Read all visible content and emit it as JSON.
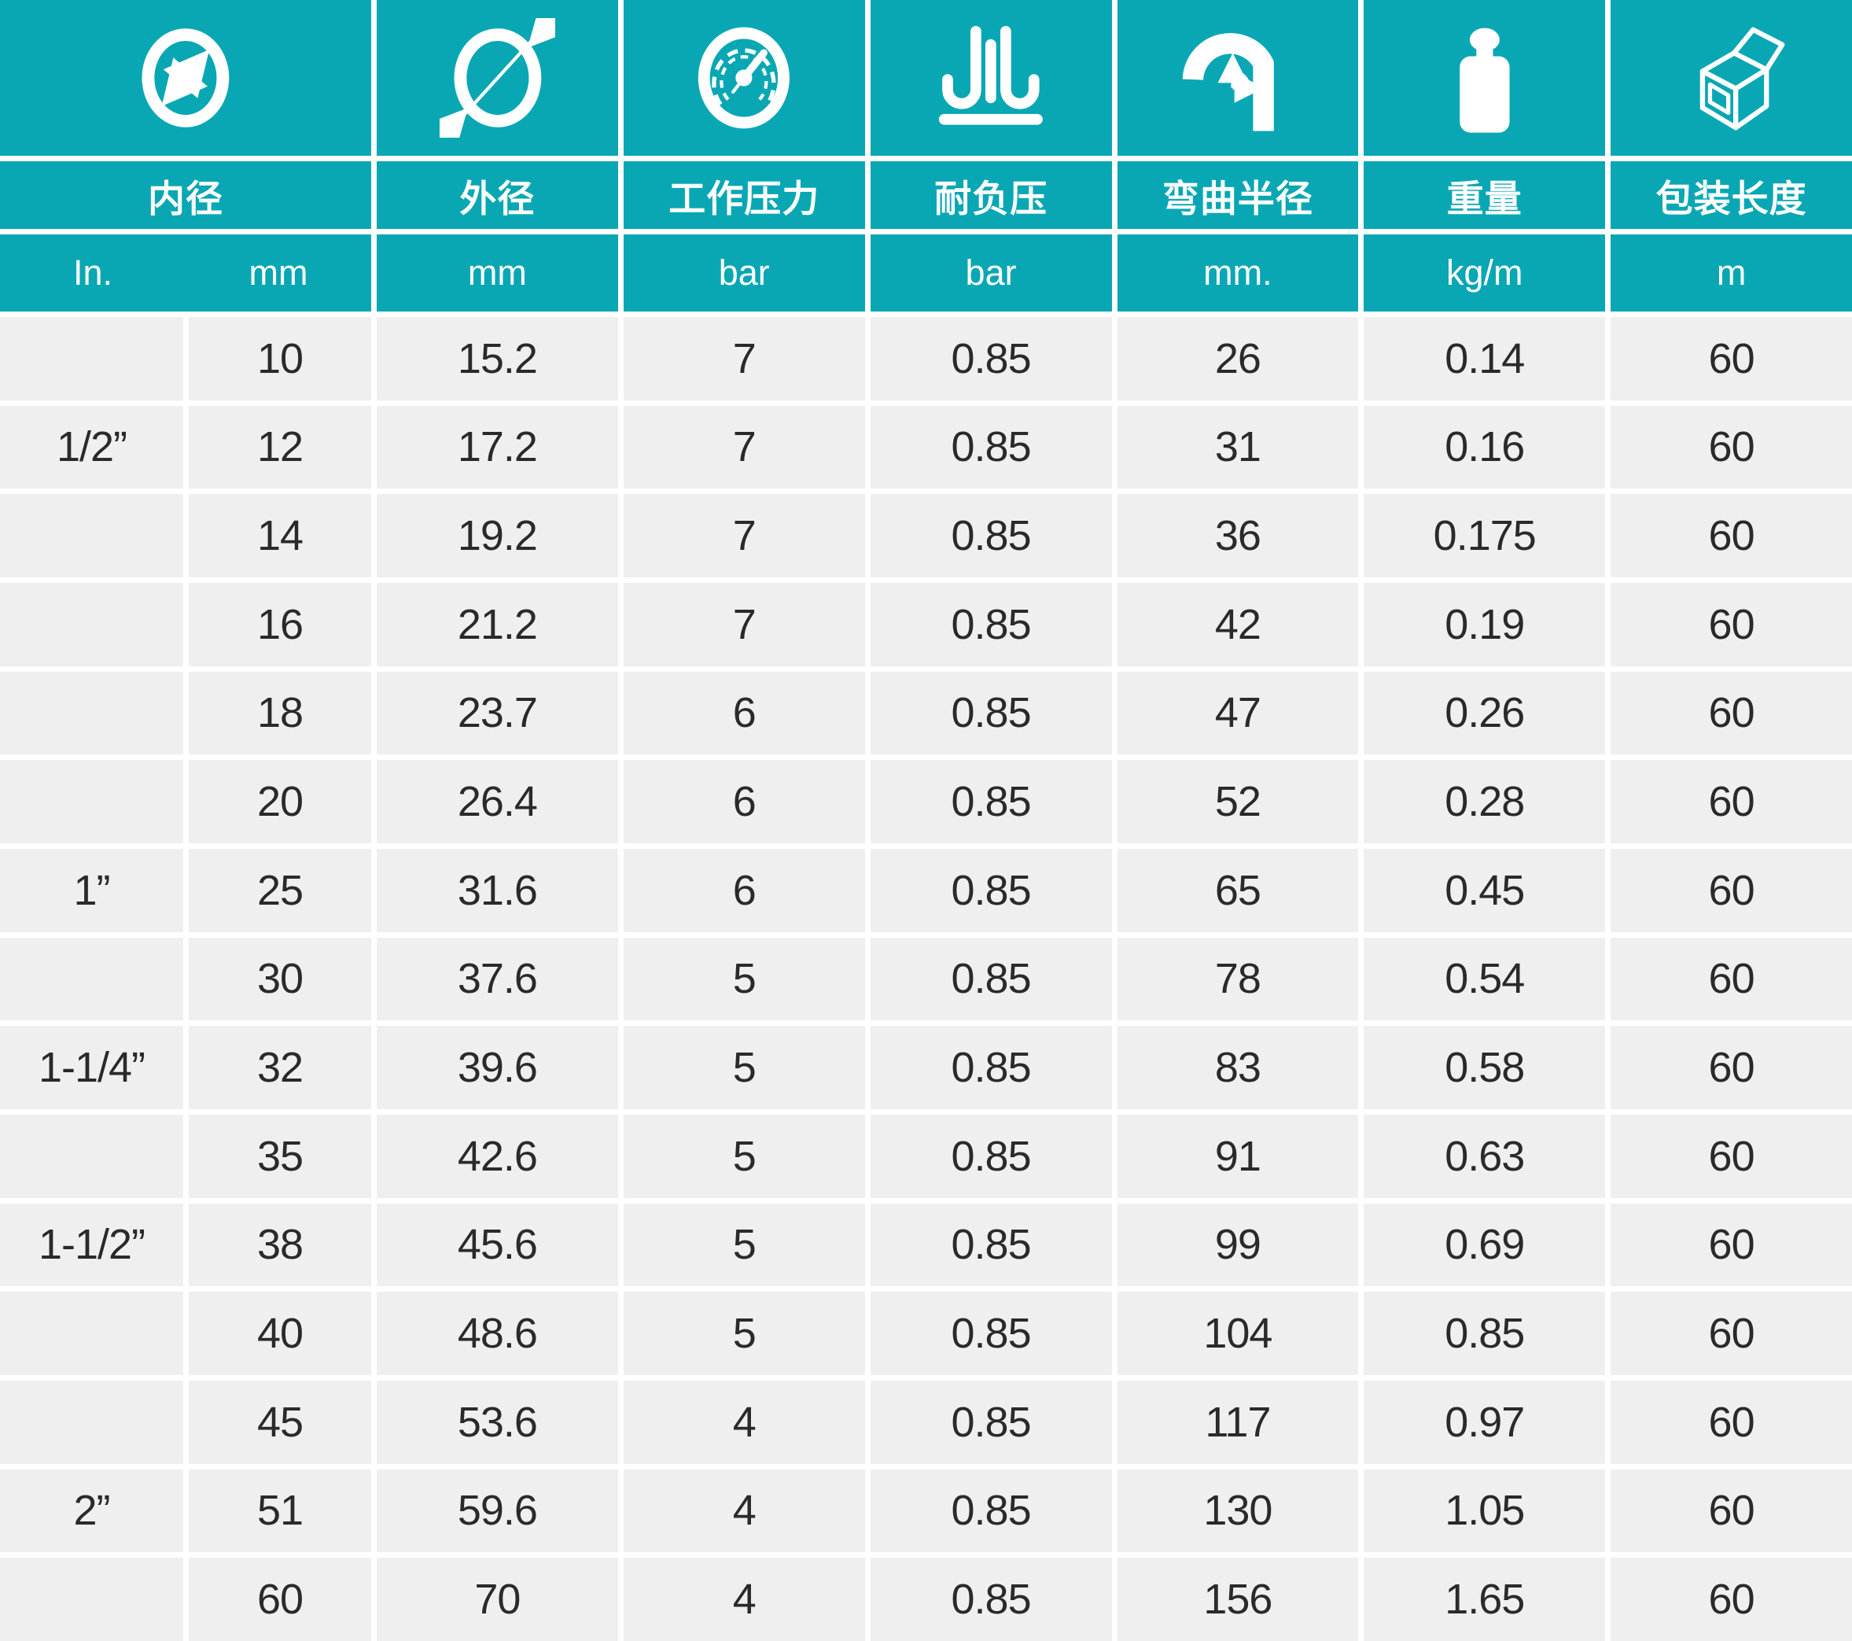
{
  "table": {
    "columns": [
      {
        "label": "内径",
        "icon": "inner-diameter-icon",
        "units": [
          "In.",
          "mm"
        ]
      },
      {
        "label": "外径",
        "icon": "outer-diameter-icon",
        "unit": "mm"
      },
      {
        "label": "工作压力",
        "icon": "pressure-gauge-icon",
        "unit": "bar"
      },
      {
        "label": "耐负压",
        "icon": "vacuum-resistance-icon",
        "unit": "bar"
      },
      {
        "label": "弯曲半径",
        "icon": "bend-radius-icon",
        "unit": "mm."
      },
      {
        "label": "重量",
        "icon": "weight-icon",
        "unit": "kg/m"
      },
      {
        "label": "包装长度",
        "icon": "package-length-icon",
        "unit": "m"
      }
    ],
    "rows": [
      [
        "",
        "10",
        "15.2",
        "7",
        "0.85",
        "26",
        "0.14",
        "60"
      ],
      [
        "1/2”",
        "12",
        "17.2",
        "7",
        "0.85",
        "31",
        "0.16",
        "60"
      ],
      [
        "",
        "14",
        "19.2",
        "7",
        "0.85",
        "36",
        "0.175",
        "60"
      ],
      [
        "",
        "16",
        "21.2",
        "7",
        "0.85",
        "42",
        "0.19",
        "60"
      ],
      [
        "",
        "18",
        "23.7",
        "6",
        "0.85",
        "47",
        "0.26",
        "60"
      ],
      [
        "",
        "20",
        "26.4",
        "6",
        "0.85",
        "52",
        "0.28",
        "60"
      ],
      [
        "1”",
        "25",
        "31.6",
        "6",
        "0.85",
        "65",
        "0.45",
        "60"
      ],
      [
        "",
        "30",
        "37.6",
        "5",
        "0.85",
        "78",
        "0.54",
        "60"
      ],
      [
        "1-1/4”",
        "32",
        "39.6",
        "5",
        "0.85",
        "83",
        "0.58",
        "60"
      ],
      [
        "",
        "35",
        "42.6",
        "5",
        "0.85",
        "91",
        "0.63",
        "60"
      ],
      [
        "1-1/2”",
        "38",
        "45.6",
        "5",
        "0.85",
        "99",
        "0.69",
        "60"
      ],
      [
        "",
        "40",
        "48.6",
        "5",
        "0.85",
        "104",
        "0.85",
        "60"
      ],
      [
        "",
        "45",
        "53.6",
        "4",
        "0.85",
        "117",
        "0.97",
        "60"
      ],
      [
        "2”",
        "51",
        "59.6",
        "4",
        "0.85",
        "130",
        "1.05",
        "60"
      ],
      [
        "",
        "60",
        "70",
        "4",
        "0.85",
        "156",
        "1.65",
        "60"
      ]
    ]
  },
  "colors": {
    "header_teal": "#09A7B4",
    "row_gray": "#EFEFEF",
    "text_dark": "#2A2A2A",
    "gap_white": "#FFFFFF"
  }
}
